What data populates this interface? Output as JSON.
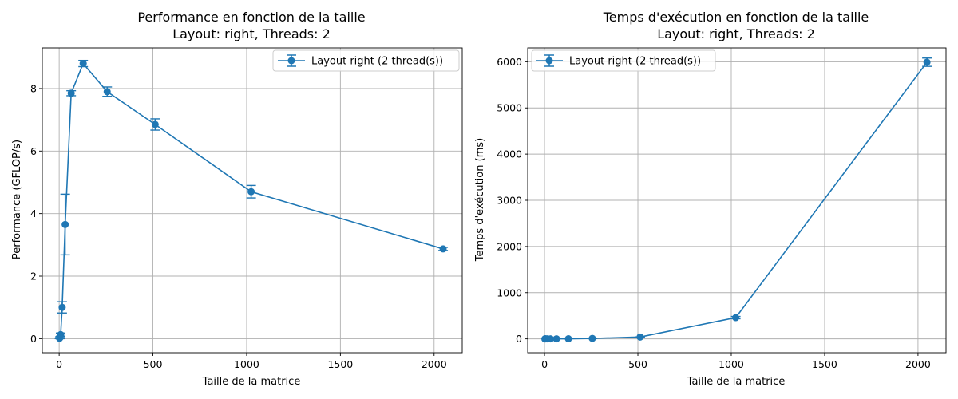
{
  "chart_data": [
    {
      "type": "line",
      "title": "Performance en fonction de la taille",
      "subtitle": "Layout: right, Threads: 2",
      "xlabel": "Taille de la matrice",
      "ylabel": "Performance (GFLOP/s)",
      "xlim": [
        -90,
        2150
      ],
      "ylim": [
        -0.45,
        9.3
      ],
      "xticks": [
        0,
        500,
        1000,
        1500,
        2000
      ],
      "yticks": [
        0,
        2,
        4,
        6,
        8
      ],
      "grid": true,
      "legend": "top-right",
      "series": [
        {
          "name": "Layout right (2 thread(s))",
          "color": "#1f77b4",
          "x": [
            2,
            4,
            8,
            16,
            32,
            64,
            128,
            256,
            512,
            1024,
            2048
          ],
          "y": [
            0.01,
            0.03,
            0.13,
            1.0,
            3.65,
            7.85,
            8.8,
            7.9,
            6.85,
            4.7,
            2.87
          ],
          "err": [
            0.01,
            0.03,
            0.05,
            0.18,
            0.97,
            0.08,
            0.1,
            0.15,
            0.18,
            0.2,
            0.05
          ]
        }
      ]
    },
    {
      "type": "line",
      "title": "Temps d'exécution en fonction de la taille",
      "subtitle": "Layout: right, Threads: 2",
      "xlabel": "Taille de la matrice",
      "ylabel": "Temps d'exécution (ms)",
      "xlim": [
        -90,
        2150
      ],
      "ylim": [
        -300,
        6300
      ],
      "xticks": [
        0,
        500,
        1000,
        1500,
        2000
      ],
      "yticks": [
        0,
        1000,
        2000,
        3000,
        4000,
        5000,
        6000
      ],
      "grid": true,
      "legend": "top-left",
      "series": [
        {
          "name": "Layout right (2 thread(s))",
          "color": "#1f77b4",
          "x": [
            2,
            4,
            8,
            16,
            32,
            64,
            128,
            256,
            512,
            1024,
            2048
          ],
          "y": [
            0.01,
            0.02,
            0.05,
            0.1,
            0.2,
            0.6,
            2,
            9,
            40,
            460,
            5990
          ],
          "err": [
            0,
            0,
            0,
            0,
            0,
            0,
            0,
            1,
            3,
            25,
            90
          ]
        }
      ]
    }
  ]
}
